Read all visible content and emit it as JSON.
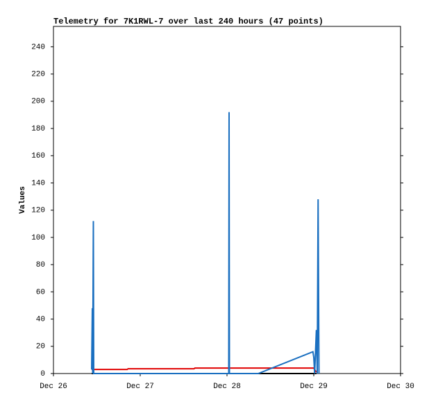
{
  "chart_data": {
    "type": "line",
    "title": "Telemetry for 7K1RWL-7 over last 240 hours (47 points)",
    "y_label": "Values",
    "xlim": [
      26,
      30
    ],
    "xticks": [
      {
        "value": 26,
        "label": "Dec 26"
      },
      {
        "value": 27,
        "label": "Dec 27"
      },
      {
        "value": 28,
        "label": "Dec 28"
      },
      {
        "value": 29,
        "label": "Dec 29"
      },
      {
        "value": 30,
        "label": "Dec 30"
      }
    ],
    "ylim": [
      0,
      255
    ],
    "yticks": [
      0,
      20,
      40,
      60,
      80,
      100,
      120,
      140,
      160,
      180,
      200,
      220,
      240
    ],
    "series": [
      {
        "color": "#000000",
        "x": [
          26.44,
          29.03
        ],
        "values": [
          0,
          0
        ]
      },
      {
        "color": "#e00000",
        "x": [
          26.44,
          26.85,
          26.86,
          27.62,
          27.63,
          29.0,
          29.03
        ],
        "values": [
          3,
          3,
          3.5,
          3.5,
          4,
          4,
          1
        ]
      },
      {
        "color": "#1a6fc0",
        "x": [
          26.44,
          26.448,
          26.452,
          26.46,
          26.464,
          28.02,
          28.024,
          28.028,
          28.36,
          28.99,
          29.0,
          29.01,
          29.03,
          29.04,
          29.05,
          29.06
        ],
        "values": [
          3,
          48,
          0,
          112,
          0,
          0,
          192,
          0,
          0,
          16,
          12,
          0,
          32,
          0,
          128,
          0
        ]
      }
    ]
  }
}
